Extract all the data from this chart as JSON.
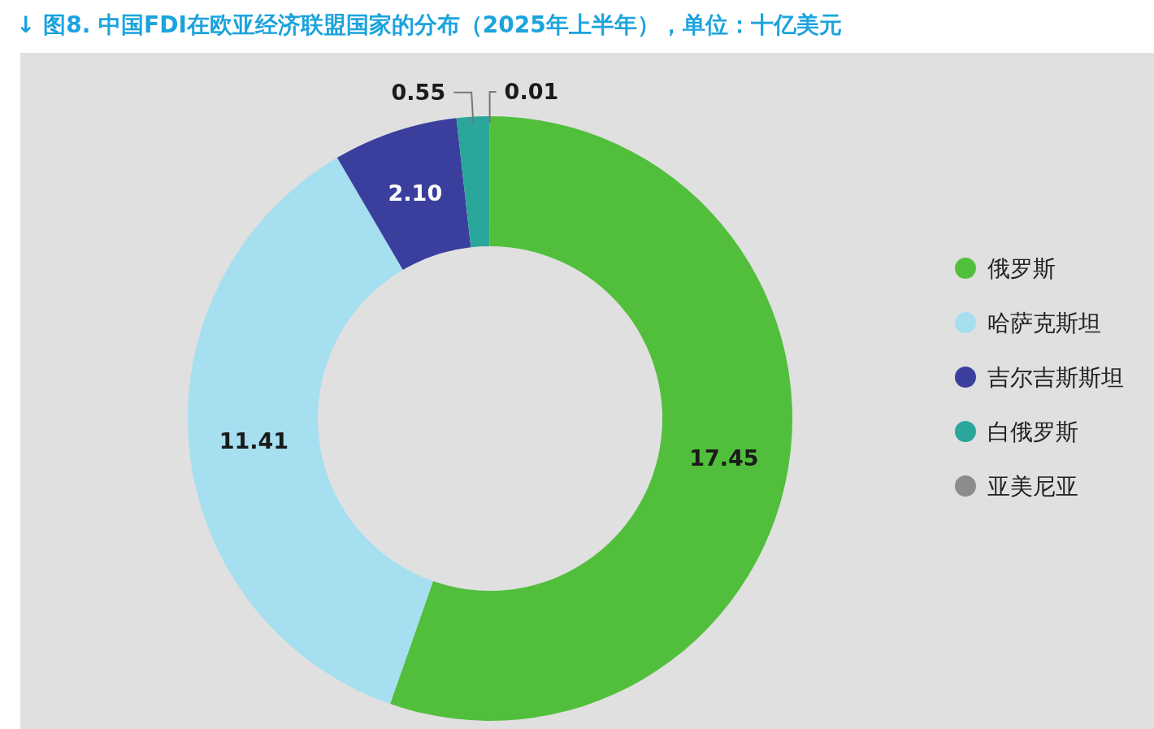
{
  "chart_data": {
    "type": "donut",
    "title": "↓ 图8. 中国FDI在欧亚经济联盟国家的分布（2025年上半年），单位：十亿美元",
    "categories": [
      "俄罗斯",
      "哈萨克斯坦",
      "吉尔吉斯斯坦",
      "白俄罗斯",
      "亚美尼亚"
    ],
    "values": [
      17.45,
      11.41,
      2.1,
      0.55,
      0.01
    ],
    "colors": [
      "#52bf3c",
      "#a5dff0",
      "#3a3f9e",
      "#2aa69a",
      "#8c8c8c"
    ],
    "value_labels": [
      "17.45",
      "11.41",
      "2.10",
      "0.55",
      "0.01"
    ],
    "legend": "right"
  }
}
